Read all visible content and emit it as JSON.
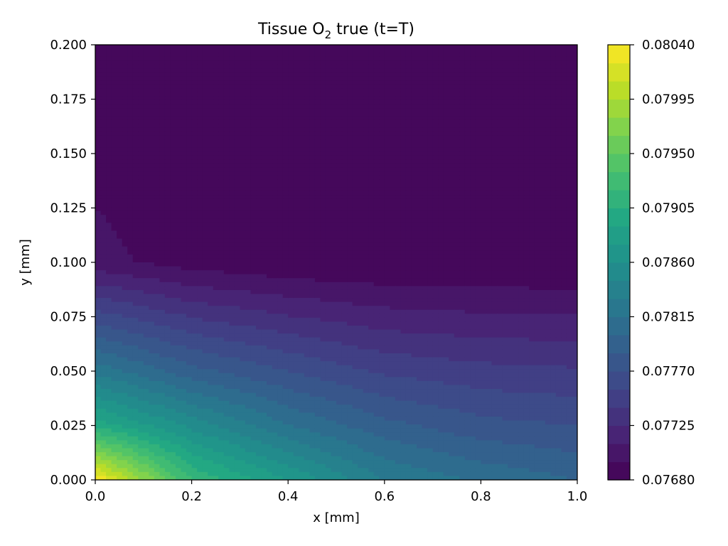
{
  "chart_data": {
    "type": "heatmap",
    "subtype": "filled-contour",
    "title": "Tissue O",
    "title_subscript": "2",
    "title_suffix": " true (t=T)",
    "xlabel": "x [mm]",
    "ylabel": "y [mm]",
    "xlim": [
      0.0,
      1.0
    ],
    "ylim": [
      0.0,
      0.2
    ],
    "x_ticks": [
      0.0,
      0.2,
      0.4,
      0.6,
      0.8,
      1.0
    ],
    "x_tick_labels": [
      "0.0",
      "0.2",
      "0.4",
      "0.6",
      "0.8",
      "1.0"
    ],
    "y_ticks": [
      0.0,
      0.025,
      0.05,
      0.075,
      0.1,
      0.125,
      0.15,
      0.175,
      0.2
    ],
    "y_tick_labels": [
      "0.000",
      "0.025",
      "0.050",
      "0.075",
      "0.100",
      "0.125",
      "0.150",
      "0.175",
      "0.200"
    ],
    "colormap": "viridis",
    "colorbar": {
      "vmin": 0.0768,
      "vmax": 0.0804,
      "levels": 24,
      "ticks": [
        0.0768,
        0.07725,
        0.0777,
        0.07815,
        0.0786,
        0.07905,
        0.0795,
        0.07995,
        0.0804
      ],
      "tick_labels": [
        "0.07680",
        "0.07725",
        "0.07770",
        "0.07815",
        "0.07860",
        "0.07905",
        "0.07950",
        "0.07995",
        "0.08040"
      ]
    },
    "field_samples": {
      "x": [
        0.0,
        0.2,
        0.4,
        0.6,
        0.8,
        1.0
      ],
      "y": [
        0.0,
        0.025,
        0.05,
        0.1,
        0.2
      ],
      "values": [
        [
          0.0804,
          0.0792,
          0.07875,
          0.0783,
          0.07812,
          0.078
        ],
        [
          0.079,
          0.07855,
          0.07815,
          0.0779,
          0.07775,
          0.0777
        ],
        [
          0.07825,
          0.0779,
          0.0777,
          0.07752,
          0.07745,
          0.07742
        ],
        [
          0.077,
          0.07688,
          0.07682,
          0.0768,
          0.0768,
          0.0768
        ],
        [
          0.0768,
          0.0768,
          0.0768,
          0.0768,
          0.0768,
          0.0768
        ]
      ]
    }
  }
}
